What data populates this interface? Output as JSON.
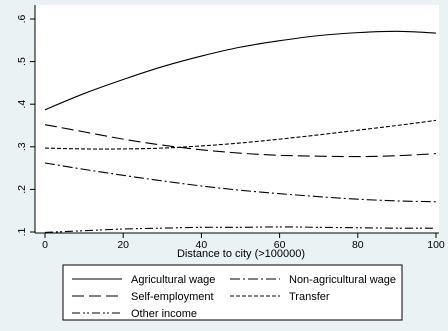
{
  "chart_data": {
    "type": "line",
    "title": "",
    "xlabel": "Distance to city (>100000)",
    "ylabel": "",
    "xlim": [
      0,
      100
    ],
    "ylim": [
      0.1,
      0.6
    ],
    "x_ticks": [
      0,
      20,
      40,
      60,
      80,
      100
    ],
    "x_tick_labels": [
      "0",
      "20",
      "40",
      "60",
      "80",
      "100"
    ],
    "y_ticks": [
      0.1,
      0.2,
      0.3,
      0.4,
      0.5,
      0.6
    ],
    "y_tick_labels": [
      ".1",
      ".2",
      ".3",
      ".4",
      ".5",
      ".6"
    ],
    "grid": false,
    "legend_position": "bottom",
    "colors": {
      "outer_background": "#eaf2f3",
      "plot_background": "#ffffff",
      "line": "#000000"
    },
    "x": [
      0,
      10,
      20,
      30,
      40,
      50,
      60,
      70,
      80,
      90,
      100
    ],
    "series": [
      {
        "name": "Agricultural wage",
        "dash": "solid",
        "values": [
          0.387,
          0.425,
          0.458,
          0.488,
          0.513,
          0.534,
          0.549,
          0.561,
          0.568,
          0.571,
          0.567
        ]
      },
      {
        "name": "Non-agricultural wage",
        "dash": "dashdot",
        "values": [
          0.262,
          0.247,
          0.233,
          0.22,
          0.208,
          0.198,
          0.19,
          0.183,
          0.177,
          0.173,
          0.171
        ]
      },
      {
        "name": "Self-employment",
        "dash": "longdash",
        "values": [
          0.352,
          0.335,
          0.318,
          0.304,
          0.293,
          0.285,
          0.28,
          0.278,
          0.277,
          0.279,
          0.284
        ]
      },
      {
        "name": "Transfer",
        "dash": "shortdash",
        "values": [
          0.297,
          0.295,
          0.295,
          0.297,
          0.302,
          0.309,
          0.318,
          0.328,
          0.339,
          0.35,
          0.362
        ]
      },
      {
        "name": "Other income",
        "dash": "dashdotdot",
        "values": [
          0.099,
          0.103,
          0.107,
          0.109,
          0.111,
          0.111,
          0.112,
          0.111,
          0.11,
          0.109,
          0.109
        ]
      }
    ]
  }
}
